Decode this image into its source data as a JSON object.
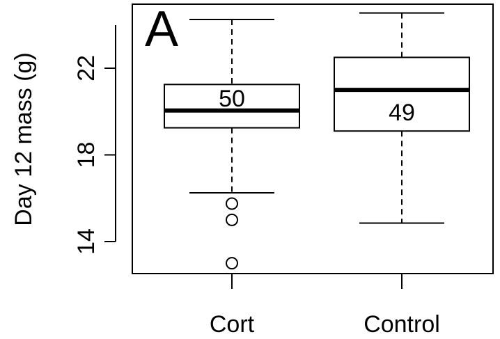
{
  "chart_data": {
    "type": "box",
    "panel_label": "A",
    "ylabel": "Day 12 mass (g)",
    "xlabel": "",
    "categories": [
      "Cort",
      "Control"
    ],
    "ylim": [
      12.2,
      24.8
    ],
    "y_ticks": [
      14,
      18,
      22
    ],
    "y_tick_labels": [
      "14",
      "18",
      "22"
    ],
    "grid": false,
    "boxes": [
      {
        "category": "Cort",
        "whisker_low": 16.25,
        "q1": 19.25,
        "median": 20.05,
        "q3": 21.25,
        "whisker_high": 24.25,
        "outliers": [
          15.75,
          15.0,
          13.0
        ],
        "count_label": "50"
      },
      {
        "category": "Control",
        "whisker_low": 14.85,
        "q1": 19.1,
        "median": 21.0,
        "q3": 22.5,
        "whisker_high": 24.55,
        "outliers": [],
        "count_label": "49"
      }
    ]
  }
}
